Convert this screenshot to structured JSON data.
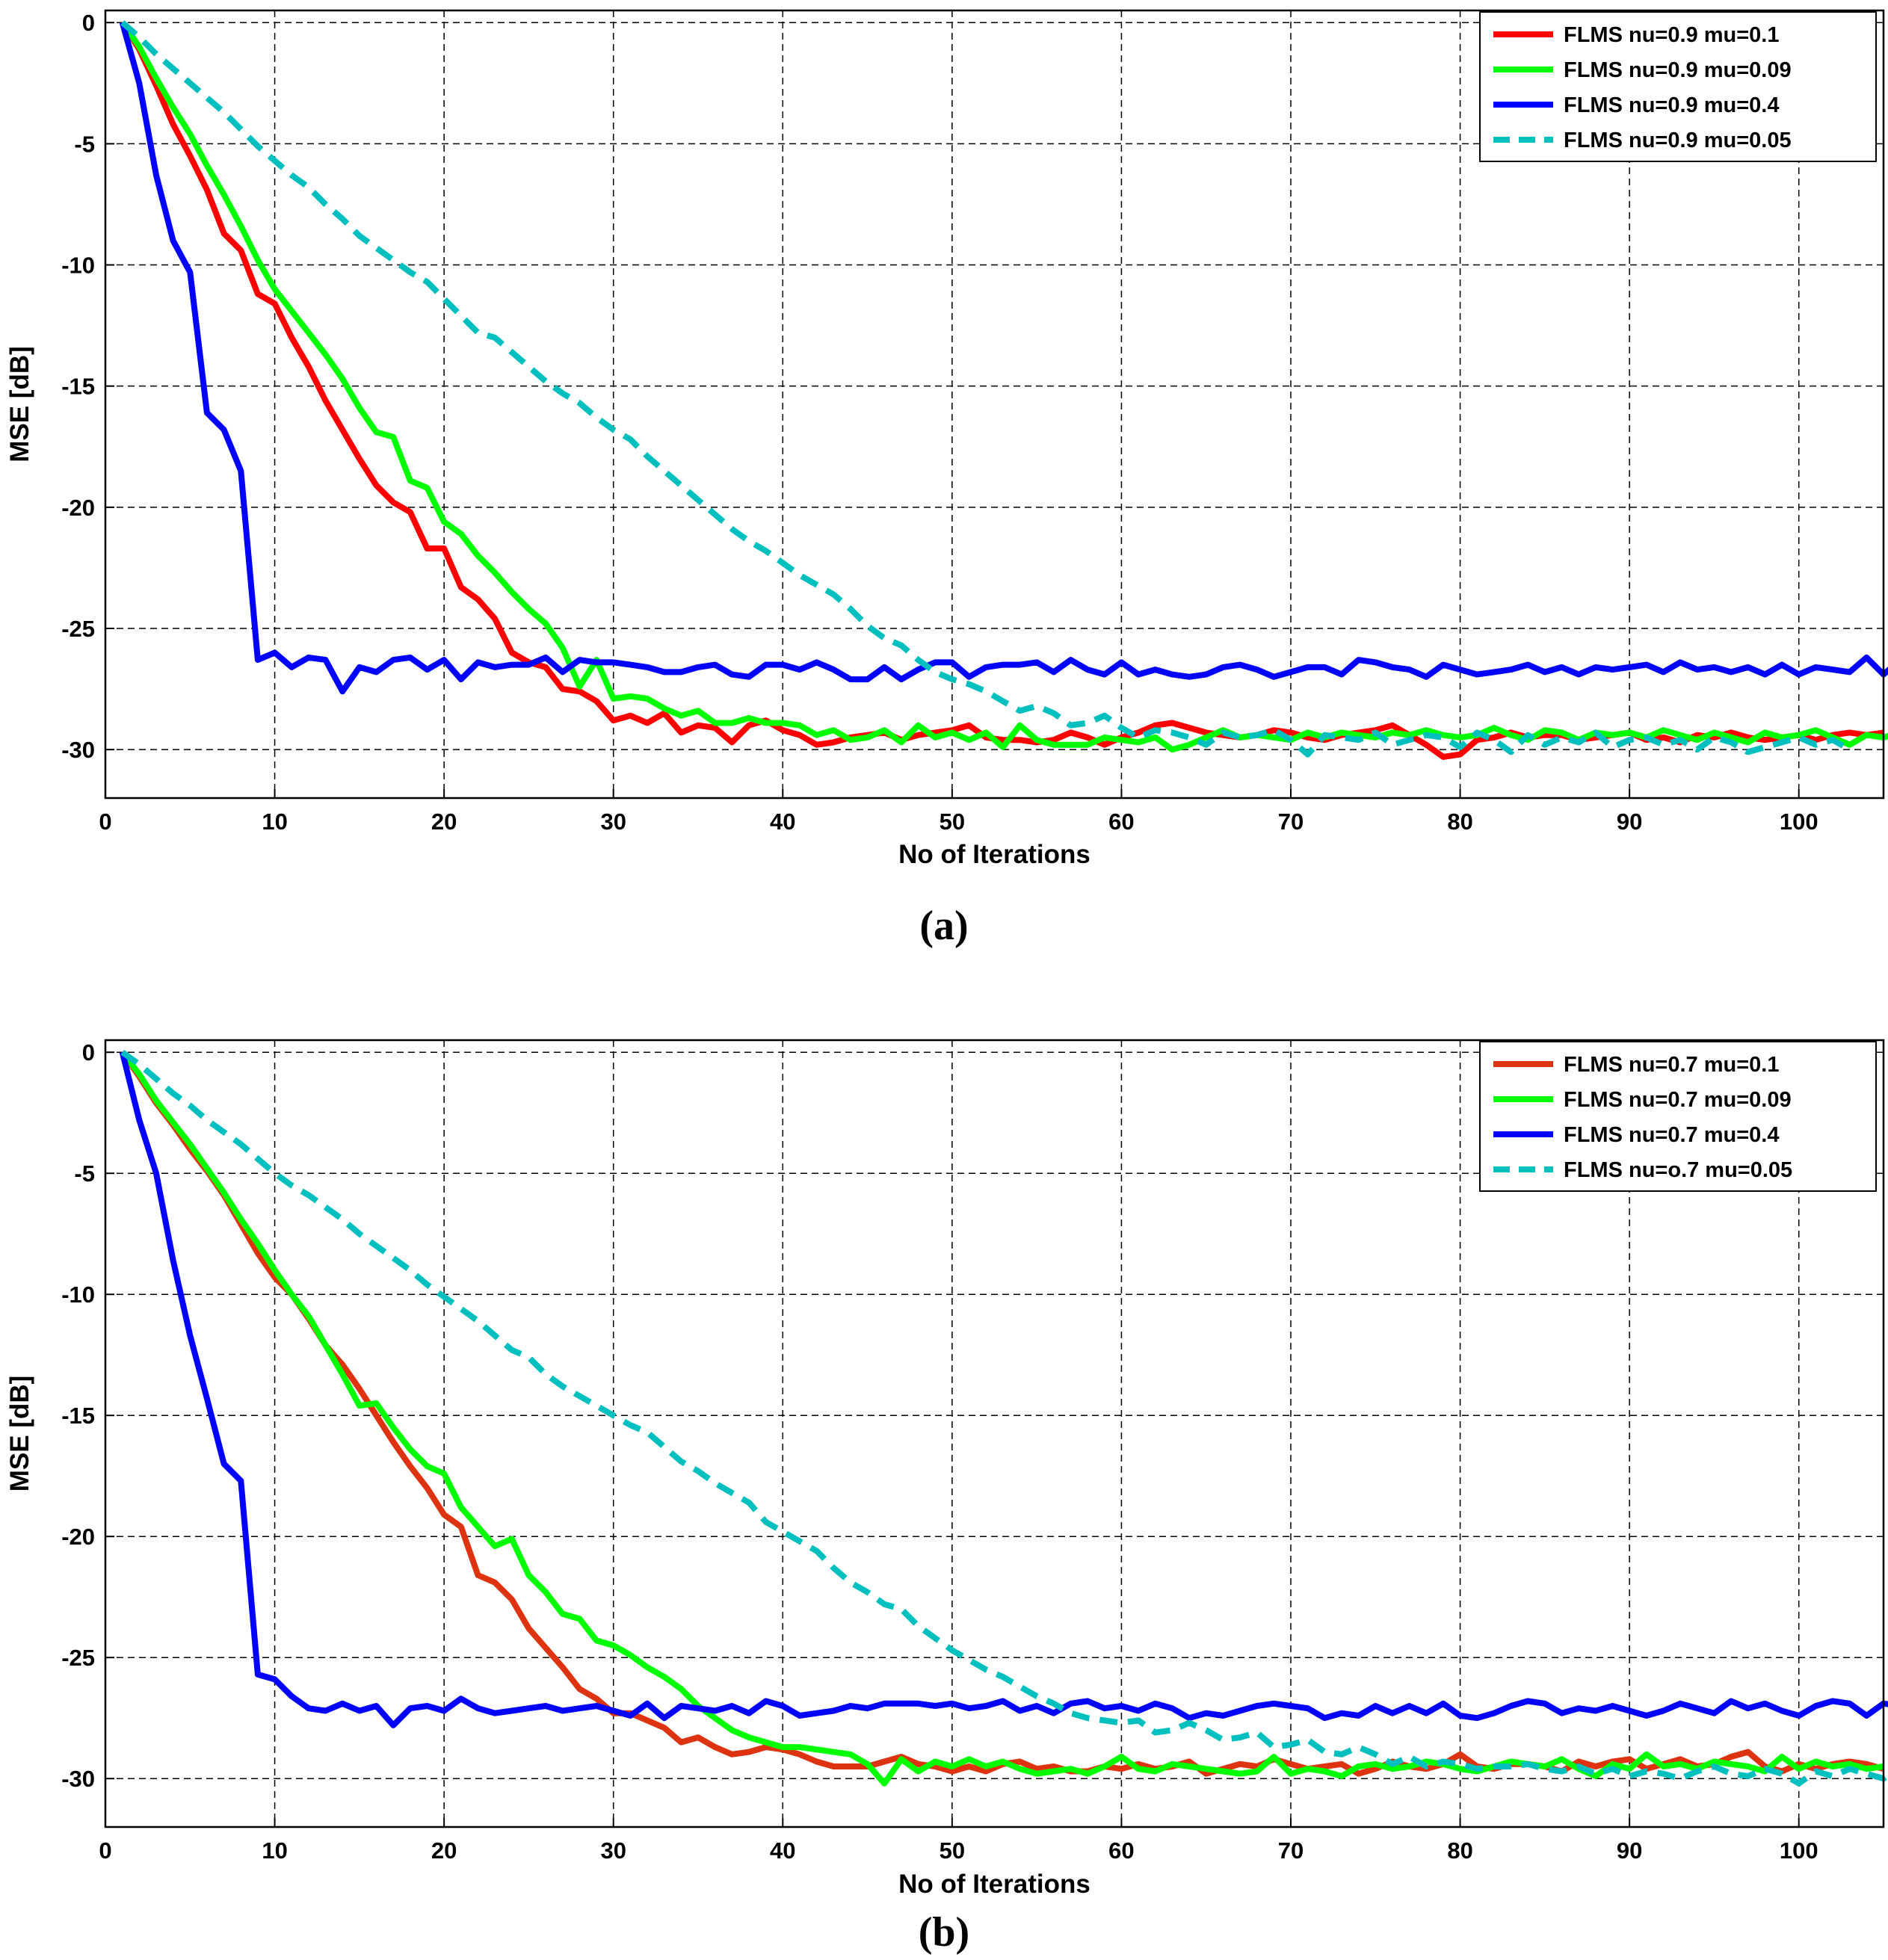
{
  "chart_data": [
    {
      "id": "a",
      "type": "line",
      "caption": "(a)",
      "xlabel": "No of Iterations",
      "ylabel": "MSE [dB]",
      "xlim": [
        0,
        105
      ],
      "ylim": [
        -32,
        0.5
      ],
      "xticks": [
        0,
        10,
        20,
        30,
        40,
        50,
        60,
        70,
        80,
        90,
        100
      ],
      "yticks": [
        0,
        -5,
        -10,
        -15,
        -20,
        -25,
        -30
      ],
      "grid": true,
      "legend_position": "top-right",
      "series": [
        {
          "name": "FLMS nu=0.9 mu=0.1",
          "color": "#ff0000",
          "dash": "solid",
          "start_x": 1,
          "values": [
            0,
            -1.1,
            -2.6,
            -4.2,
            -5.5,
            -6.9,
            -8.7,
            -9.4,
            -11.2,
            -11.6,
            -13.0,
            -14.2,
            -15.6,
            -16.8,
            -18.0,
            -19.1,
            -19.8,
            -20.2,
            -21.7,
            -21.7,
            -23.3,
            -23.8,
            -24.6,
            -26.0,
            -26.4,
            -26.6,
            -27.5,
            -27.6,
            -28.0,
            -28.8,
            -28.6,
            -28.9,
            -28.5,
            -29.3,
            -29.0,
            -29.1,
            -29.7,
            -29.0,
            -28.8,
            -29.2,
            -29.4,
            -29.8,
            -29.7,
            -29.5,
            -29.4,
            -29.3,
            -29.6,
            -29.4,
            -29.3,
            -29.2,
            -29.0,
            -29.5,
            -29.6,
            -29.6,
            -29.7,
            -29.6,
            -29.3,
            -29.5,
            -29.8,
            -29.5,
            -29.3,
            -29.0,
            -28.9,
            -29.1,
            -29.3,
            -29.4,
            -29.5,
            -29.4,
            -29.2,
            -29.3,
            -29.5,
            -29.6,
            -29.4,
            -29.3,
            -29.2,
            -29.0,
            -29.4,
            -29.8,
            -30.3,
            -30.2,
            -29.6,
            -29.5,
            -29.3,
            -29.5,
            -29.4,
            -29.4,
            -29.6,
            -29.5,
            -29.4,
            -29.3,
            -29.6,
            -29.5,
            -29.7,
            -29.4,
            -29.5,
            -29.3,
            -29.5,
            -29.6,
            -29.5,
            -29.4,
            -29.6,
            -29.4,
            -29.3,
            -29.4,
            -29.3
          ]
        },
        {
          "name": "FLMS nu=0.9 mu=0.09",
          "color": "#00ff00",
          "dash": "solid",
          "start_x": 1,
          "values": [
            0,
            -1.0,
            -2.3,
            -3.5,
            -4.6,
            -5.9,
            -7.1,
            -8.4,
            -9.8,
            -11.0,
            -11.9,
            -12.8,
            -13.7,
            -14.7,
            -15.9,
            -16.9,
            -17.1,
            -18.9,
            -19.2,
            -20.6,
            -21.1,
            -22.0,
            -22.7,
            -23.5,
            -24.2,
            -24.8,
            -25.8,
            -27.4,
            -26.3,
            -27.9,
            -27.8,
            -27.9,
            -28.3,
            -28.6,
            -28.4,
            -28.9,
            -28.9,
            -28.7,
            -28.9,
            -28.9,
            -29.0,
            -29.4,
            -29.2,
            -29.6,
            -29.5,
            -29.2,
            -29.7,
            -29.0,
            -29.5,
            -29.3,
            -29.6,
            -29.3,
            -29.9,
            -29.0,
            -29.6,
            -29.8,
            -29.8,
            -29.8,
            -29.5,
            -29.6,
            -29.7,
            -29.5,
            -30.0,
            -29.8,
            -29.5,
            -29.2,
            -29.5,
            -29.4,
            -29.5,
            -29.6,
            -29.3,
            -29.5,
            -29.3,
            -29.4,
            -29.5,
            -29.3,
            -29.4,
            -29.2,
            -29.4,
            -29.5,
            -29.4,
            -29.1,
            -29.4,
            -29.6,
            -29.2,
            -29.3,
            -29.6,
            -29.3,
            -29.4,
            -29.3,
            -29.5,
            -29.2,
            -29.4,
            -29.6,
            -29.3,
            -29.5,
            -29.7,
            -29.3,
            -29.5,
            -29.4,
            -29.2,
            -29.5,
            -29.8,
            -29.4,
            -29.5,
            -29.3
          ]
        },
        {
          "name": "FLMS nu=0.9 mu=0.4",
          "color": "#0000ff",
          "dash": "solid",
          "start_x": 1,
          "values": [
            0,
            -2.5,
            -6.3,
            -9.0,
            -10.3,
            -16.1,
            -16.8,
            -18.5,
            -26.3,
            -26.0,
            -26.6,
            -26.2,
            -26.3,
            -27.6,
            -26.6,
            -26.8,
            -26.3,
            -26.2,
            -26.7,
            -26.3,
            -27.1,
            -26.4,
            -26.6,
            -26.5,
            -26.5,
            -26.2,
            -26.8,
            -26.3,
            -26.4,
            -26.4,
            -26.5,
            -26.6,
            -26.8,
            -26.8,
            -26.6,
            -26.5,
            -26.9,
            -27.0,
            -26.5,
            -26.5,
            -26.7,
            -26.4,
            -26.7,
            -27.1,
            -27.1,
            -26.6,
            -27.1,
            -26.7,
            -26.4,
            -26.4,
            -27.0,
            -26.6,
            -26.5,
            -26.5,
            -26.4,
            -26.8,
            -26.3,
            -26.7,
            -26.9,
            -26.4,
            -26.9,
            -26.7,
            -26.9,
            -27.0,
            -26.9,
            -26.6,
            -26.5,
            -26.7,
            -27.0,
            -26.8,
            -26.6,
            -26.6,
            -26.9,
            -26.3,
            -26.4,
            -26.6,
            -26.7,
            -27.0,
            -26.5,
            -26.7,
            -26.9,
            -26.8,
            -26.7,
            -26.5,
            -26.8,
            -26.6,
            -26.9,
            -26.6,
            -26.7,
            -26.6,
            -26.5,
            -26.8,
            -26.4,
            -26.7,
            -26.6,
            -26.8,
            -26.6,
            -26.9,
            -26.5,
            -26.9,
            -26.6,
            -26.7,
            -26.8,
            -26.2,
            -26.9,
            -26.3
          ]
        },
        {
          "name": "FLMS nu=0.9 mu=0.05",
          "color": "#00bfbf",
          "dash": "dashed",
          "start_x": 1,
          "values": [
            0,
            -0.6,
            -1.3,
            -1.9,
            -2.5,
            -3.1,
            -3.7,
            -4.4,
            -5.1,
            -5.7,
            -6.3,
            -6.8,
            -7.5,
            -8.1,
            -8.8,
            -9.3,
            -9.8,
            -10.3,
            -10.7,
            -11.4,
            -12.1,
            -12.8,
            -13.0,
            -13.6,
            -14.2,
            -14.8,
            -15.3,
            -15.7,
            -16.3,
            -16.8,
            -17.2,
            -17.9,
            -18.5,
            -19.1,
            -19.7,
            -20.3,
            -20.9,
            -21.4,
            -21.8,
            -22.3,
            -22.8,
            -23.2,
            -23.6,
            -24.2,
            -24.9,
            -25.4,
            -25.7,
            -26.3,
            -26.8,
            -27.1,
            -27.3,
            -27.6,
            -28.0,
            -28.4,
            -28.2,
            -28.5,
            -29.0,
            -28.9,
            -28.6,
            -29.1,
            -29.5,
            -29.2,
            -29.3,
            -29.5,
            -29.8,
            -29.3,
            -29.5,
            -29.4,
            -29.2,
            -29.6,
            -30.2,
            -29.4,
            -29.5,
            -29.6,
            -29.3,
            -29.8,
            -29.6,
            -29.4,
            -29.5,
            -29.9,
            -29.3,
            -29.6,
            -30.1,
            -29.4,
            -29.8,
            -29.5,
            -29.7,
            -29.3,
            -29.9,
            -29.6,
            -29.5,
            -29.8,
            -29.6,
            -30.0,
            -29.5,
            -29.7,
            -30.1,
            -29.9,
            -29.7,
            -29.5,
            -29.8,
            -29.6,
            -30.0
          ]
        }
      ]
    },
    {
      "id": "b",
      "type": "line",
      "caption": "(b)",
      "xlabel": "No of Iterations",
      "ylabel": "MSE [dB]",
      "xlim": [
        0,
        105
      ],
      "ylim": [
        -32,
        0.5
      ],
      "xticks": [
        0,
        10,
        20,
        30,
        40,
        50,
        60,
        70,
        80,
        90,
        100
      ],
      "yticks": [
        0,
        -5,
        -10,
        -15,
        -20,
        -25,
        -30
      ],
      "grid": true,
      "legend_position": "top-right",
      "series": [
        {
          "name": "FLMS nu=0.7 mu=0.1",
          "color": "#dd3311",
          "dash": "solid",
          "start_x": 1,
          "values": [
            0,
            -1.0,
            -2.1,
            -3.0,
            -4.0,
            -4.9,
            -5.9,
            -7.1,
            -8.3,
            -9.3,
            -10.0,
            -11.0,
            -12.1,
            -12.9,
            -13.9,
            -15.0,
            -16.1,
            -17.1,
            -18.0,
            -19.1,
            -19.6,
            -21.6,
            -21.9,
            -22.6,
            -23.8,
            -24.6,
            -25.4,
            -26.3,
            -26.7,
            -27.3,
            -27.3,
            -27.6,
            -27.9,
            -28.5,
            -28.3,
            -28.7,
            -29.0,
            -28.9,
            -28.7,
            -28.8,
            -29.0,
            -29.3,
            -29.5,
            -29.5,
            -29.5,
            -29.3,
            -29.1,
            -29.4,
            -29.5,
            -29.7,
            -29.5,
            -29.7,
            -29.4,
            -29.3,
            -29.6,
            -29.5,
            -29.7,
            -29.7,
            -29.5,
            -29.6,
            -29.4,
            -29.6,
            -29.5,
            -29.3,
            -29.8,
            -29.6,
            -29.4,
            -29.5,
            -29.2,
            -29.4,
            -29.6,
            -29.5,
            -29.4,
            -29.8,
            -29.6,
            -29.3,
            -29.5,
            -29.6,
            -29.4,
            -29.0,
            -29.5,
            -29.6,
            -29.4,
            -29.4,
            -29.5,
            -29.7,
            -29.3,
            -29.5,
            -29.3,
            -29.2,
            -29.6,
            -29.4,
            -29.2,
            -29.5,
            -29.4,
            -29.1,
            -28.9,
            -29.5,
            -29.7,
            -29.4,
            -29.6,
            -29.4,
            -29.3,
            -29.4,
            -29.6
          ]
        },
        {
          "name": "FLMS nu=0.7 mu=0.09",
          "color": "#00ff00",
          "dash": "solid",
          "start_x": 1,
          "values": [
            0,
            -0.9,
            -2.0,
            -2.9,
            -3.8,
            -4.8,
            -5.8,
            -6.9,
            -7.9,
            -9.0,
            -10.0,
            -10.9,
            -12.1,
            -13.3,
            -14.6,
            -14.5,
            -15.5,
            -16.4,
            -17.1,
            -17.4,
            -18.8,
            -19.6,
            -20.4,
            -20.1,
            -21.6,
            -22.3,
            -23.2,
            -23.4,
            -24.3,
            -24.5,
            -24.9,
            -25.4,
            -25.8,
            -26.3,
            -27.0,
            -27.5,
            -28.0,
            -28.3,
            -28.5,
            -28.7,
            -28.7,
            -28.8,
            -28.9,
            -29.0,
            -29.4,
            -30.2,
            -29.2,
            -29.7,
            -29.3,
            -29.5,
            -29.2,
            -29.5,
            -29.3,
            -29.6,
            -29.8,
            -29.7,
            -29.6,
            -29.8,
            -29.5,
            -29.1,
            -29.6,
            -29.7,
            -29.4,
            -29.5,
            -29.6,
            -29.7,
            -29.8,
            -29.7,
            -29.1,
            -29.8,
            -29.6,
            -29.7,
            -29.9,
            -29.5,
            -29.4,
            -29.6,
            -29.5,
            -29.3,
            -29.4,
            -29.6,
            -29.7,
            -29.5,
            -29.3,
            -29.4,
            -29.5,
            -29.2,
            -29.6,
            -29.9,
            -29.4,
            -29.6,
            -29.0,
            -29.5,
            -29.4,
            -29.6,
            -29.3,
            -29.4,
            -29.5,
            -29.7,
            -29.1,
            -29.6,
            -29.3,
            -29.5,
            -29.4,
            -29.6,
            -29.5
          ]
        },
        {
          "name": "FLMS nu=0.7 mu=0.4",
          "color": "#0000ff",
          "dash": "solid",
          "start_x": 1,
          "values": [
            0,
            -2.8,
            -5.0,
            -8.6,
            -11.7,
            -14.3,
            -17.0,
            -17.7,
            -25.7,
            -25.9,
            -26.6,
            -27.1,
            -27.2,
            -26.9,
            -27.2,
            -27.0,
            -27.8,
            -27.1,
            -27.0,
            -27.2,
            -26.7,
            -27.1,
            -27.3,
            -27.2,
            -27.1,
            -27.0,
            -27.2,
            -27.1,
            -27.0,
            -27.2,
            -27.4,
            -26.9,
            -27.5,
            -27.0,
            -27.1,
            -27.2,
            -27.0,
            -27.3,
            -26.8,
            -27.0,
            -27.4,
            -27.3,
            -27.2,
            -27.0,
            -27.1,
            -26.9,
            -26.9,
            -26.9,
            -27.0,
            -26.9,
            -27.1,
            -27.0,
            -26.8,
            -27.2,
            -27.0,
            -27.3,
            -26.9,
            -26.8,
            -27.1,
            -27.0,
            -27.2,
            -26.9,
            -27.1,
            -27.5,
            -27.3,
            -27.4,
            -27.2,
            -27.0,
            -26.9,
            -27.0,
            -27.1,
            -27.5,
            -27.3,
            -27.4,
            -27.0,
            -27.3,
            -27.0,
            -27.3,
            -26.9,
            -27.4,
            -27.5,
            -27.3,
            -27.0,
            -26.8,
            -26.9,
            -27.3,
            -27.1,
            -27.2,
            -27.0,
            -27.2,
            -27.4,
            -27.2,
            -26.9,
            -27.1,
            -27.3,
            -26.8,
            -27.1,
            -26.9,
            -27.2,
            -27.4,
            -27.0,
            -26.8,
            -26.9,
            -27.4,
            -26.9,
            -27.0
          ]
        },
        {
          "name": "FLMS nu=o.7 mu=0.05",
          "color": "#00bfbf",
          "dash": "dashed",
          "start_x": 1,
          "values": [
            0,
            -0.5,
            -1.1,
            -1.7,
            -2.2,
            -2.8,
            -3.3,
            -3.8,
            -4.4,
            -5.0,
            -5.5,
            -5.9,
            -6.4,
            -6.9,
            -7.5,
            -8.0,
            -8.5,
            -9.0,
            -9.6,
            -10.1,
            -10.6,
            -11.1,
            -11.7,
            -12.3,
            -12.6,
            -13.3,
            -13.8,
            -14.2,
            -14.6,
            -15.0,
            -15.4,
            -15.7,
            -16.3,
            -16.9,
            -17.3,
            -17.8,
            -18.2,
            -18.6,
            -19.4,
            -19.8,
            -20.2,
            -20.6,
            -21.3,
            -21.9,
            -22.3,
            -22.8,
            -23.0,
            -23.7,
            -24.2,
            -24.7,
            -25.1,
            -25.5,
            -25.8,
            -26.2,
            -26.6,
            -26.9,
            -27.3,
            -27.5,
            -27.6,
            -27.7,
            -27.6,
            -28.1,
            -28.0,
            -27.7,
            -28.0,
            -28.4,
            -28.3,
            -28.1,
            -28.7,
            -28.6,
            -28.4,
            -28.9,
            -29.0,
            -28.7,
            -29.0,
            -29.4,
            -29.1,
            -29.5,
            -29.3,
            -29.4,
            -29.6,
            -29.5,
            -29.5,
            -29.4,
            -29.6,
            -29.7,
            -29.5,
            -29.8,
            -29.6,
            -29.9,
            -29.7,
            -29.8,
            -30.0,
            -29.7,
            -29.5,
            -29.8,
            -29.9,
            -29.6,
            -29.8,
            -30.2,
            -29.7,
            -29.9,
            -29.6,
            -29.8,
            -30.0,
            -29.5
          ]
        }
      ]
    }
  ]
}
